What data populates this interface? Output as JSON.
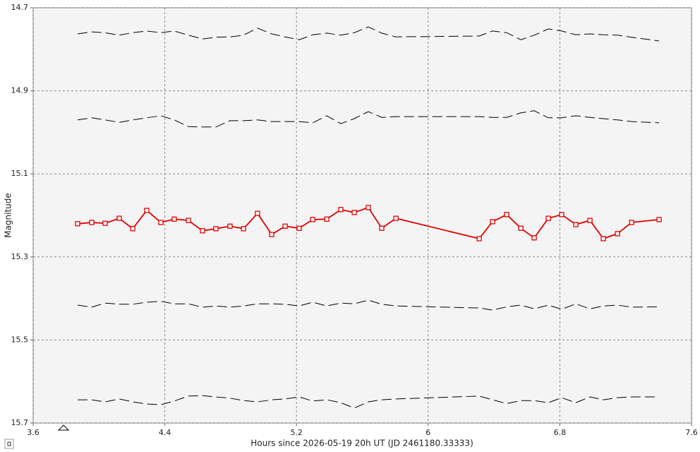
{
  "chart_data": {
    "type": "line",
    "x_label": "Hours since 2026-05-19 20h UT (JD 2461180.33333)",
    "y_label": "Magnitude",
    "xlim": [
      3.6,
      7.6
    ],
    "xticks": [
      3.6,
      4.4,
      5.2,
      6,
      6.8,
      7.6
    ],
    "ylim": [
      14.7,
      15.7
    ],
    "yticks": [
      14.7,
      14.9,
      15.1,
      15.3,
      15.5,
      15.7
    ],
    "invert_y": true,
    "grid": true,
    "x": [
      3.87,
      3.956,
      4.037,
      4.123,
      4.205,
      4.29,
      4.376,
      4.457,
      4.543,
      4.629,
      4.71,
      4.796,
      4.878,
      4.963,
      5.049,
      5.131,
      5.216,
      5.298,
      5.384,
      5.469,
      5.551,
      5.636,
      5.718,
      5.804,
      6.31,
      6.391,
      6.477,
      6.563,
      6.644,
      6.73,
      6.811,
      6.897,
      6.983,
      7.064,
      7.15,
      7.236,
      7.403
    ],
    "series": [
      {
        "color": "#e00000",
        "markers": true,
        "dashed": false,
        "values": [
          15.22,
          15.217,
          15.219,
          15.207,
          15.232,
          15.188,
          15.217,
          15.209,
          15.212,
          15.237,
          15.232,
          15.226,
          15.232,
          15.195,
          15.246,
          15.226,
          15.231,
          15.21,
          15.209,
          15.186,
          15.193,
          15.181,
          15.231,
          15.207,
          15.256,
          15.215,
          15.198,
          15.231,
          15.254,
          15.207,
          15.198,
          15.222,
          15.212,
          15.256,
          15.244,
          15.217,
          15.21
        ]
      },
      {
        "color": "#000000",
        "markers": false,
        "dashed": true,
        "values": [
          14.763,
          14.758,
          14.76,
          14.766,
          14.76,
          14.756,
          14.76,
          14.756,
          14.766,
          14.775,
          14.771,
          14.77,
          14.766,
          14.749,
          14.763,
          14.77,
          14.777,
          14.765,
          14.761,
          14.766,
          14.76,
          14.746,
          14.761,
          14.77,
          14.768,
          14.756,
          14.76,
          14.777,
          14.766,
          14.751,
          14.756,
          14.765,
          14.763,
          14.765,
          14.766,
          14.771,
          14.78
        ]
      },
      {
        "color": "#000000",
        "markers": false,
        "dashed": true,
        "values": [
          14.97,
          14.965,
          14.97,
          14.976,
          14.97,
          14.965,
          14.96,
          14.97,
          14.986,
          14.987,
          14.987,
          14.972,
          14.972,
          14.97,
          14.974,
          14.974,
          14.974,
          14.977,
          14.96,
          14.979,
          14.967,
          14.95,
          14.964,
          14.962,
          14.962,
          14.964,
          14.964,
          14.953,
          14.948,
          14.965,
          14.965,
          14.96,
          14.964,
          14.967,
          14.97,
          14.974,
          14.977
        ]
      },
      {
        "color": "#000000",
        "markers": false,
        "dashed": true,
        "values": [
          15.416,
          15.421,
          15.411,
          15.414,
          15.414,
          15.409,
          15.407,
          15.413,
          15.413,
          15.421,
          15.418,
          15.421,
          15.418,
          15.413,
          15.413,
          15.414,
          15.418,
          15.409,
          15.418,
          15.411,
          15.413,
          15.404,
          15.414,
          15.418,
          15.423,
          15.428,
          15.42,
          15.416,
          15.425,
          15.416,
          15.426,
          15.413,
          15.425,
          15.418,
          15.416,
          15.421,
          15.42
        ]
      },
      {
        "color": "#000000",
        "markers": false,
        "dashed": true,
        "values": [
          15.644,
          15.644,
          15.649,
          15.642,
          15.649,
          15.654,
          15.656,
          15.647,
          15.635,
          15.634,
          15.637,
          15.64,
          15.646,
          15.649,
          15.644,
          15.642,
          15.637,
          15.647,
          15.644,
          15.651,
          15.664,
          15.649,
          15.644,
          15.642,
          15.635,
          15.644,
          15.653,
          15.646,
          15.646,
          15.651,
          15.639,
          15.651,
          15.637,
          15.644,
          15.639,
          15.637,
          15.637
        ]
      }
    ]
  }
}
